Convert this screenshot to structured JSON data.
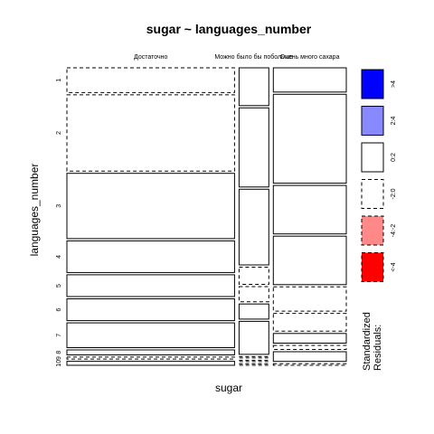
{
  "chart_data": {
    "type": "mosaic",
    "title": "sugar ~ languages_number",
    "xlabel": "sugar",
    "ylabel": "languages_number",
    "columns": [
      {
        "label": "Достаточно",
        "share": 0.62
      },
      {
        "label": "Можно было бы побольше",
        "share": 0.11
      },
      {
        "label": "Очень много сахара",
        "share": 0.27
      }
    ],
    "rows": [
      {
        "label": "1",
        "cells": [
          {
            "share": 0.25,
            "residual": "-2:0"
          },
          {
            "share": 0.55,
            "residual": "0:2"
          },
          {
            "share": 0.3,
            "residual": "0:2"
          }
        ]
      },
      {
        "label": "2",
        "cells": [
          {
            "share": 0.77,
            "residual": "-2:0"
          },
          {
            "share": 1.15,
            "residual": "0:2"
          },
          {
            "share": 1.1,
            "residual": "0:2"
          }
        ]
      },
      {
        "label": "3",
        "cells": [
          {
            "share": 0.66,
            "residual": "0:2"
          },
          {
            "share": 1.1,
            "residual": "0:2"
          },
          {
            "share": 0.6,
            "residual": "0:2"
          }
        ]
      },
      {
        "label": "4",
        "cells": [
          {
            "share": 0.32,
            "residual": "0:2"
          },
          {
            "share": 0.25,
            "residual": "-2:0"
          },
          {
            "share": 0.6,
            "residual": "0:2"
          }
        ]
      },
      {
        "label": "5",
        "cells": [
          {
            "share": 0.22,
            "residual": "0:2"
          },
          {
            "share": 0.22,
            "residual": "-2:0"
          },
          {
            "share": 0.3,
            "residual": "-2:0"
          }
        ]
      },
      {
        "label": "6",
        "cells": [
          {
            "share": 0.22,
            "residual": "0:2"
          },
          {
            "share": 0.22,
            "residual": "0:2"
          },
          {
            "share": 0.22,
            "residual": "-2:0"
          }
        ]
      },
      {
        "label": "7",
        "cells": [
          {
            "share": 0.25,
            "residual": "0:2"
          },
          {
            "share": 0.48,
            "residual": "0:2"
          },
          {
            "share": 0.12,
            "residual": "0:2"
          }
        ]
      },
      {
        "label": "8",
        "cells": [
          {
            "share": 0.05,
            "residual": "0:2"
          },
          {
            "share": 0.02,
            "residual": "-2:0"
          },
          {
            "share": 0.05,
            "residual": "-2:0"
          }
        ]
      },
      {
        "label": "9",
        "cells": [
          {
            "share": 0.02,
            "residual": "-2:0"
          },
          {
            "share": 0.02,
            "residual": "-2:0"
          },
          {
            "share": 0.12,
            "residual": "0:2"
          }
        ]
      },
      {
        "label": "10",
        "cells": [
          {
            "share": 0.04,
            "residual": "0:2"
          },
          {
            "share": 0.02,
            "residual": "-2:0"
          },
          {
            "share": 0.02,
            "residual": "-2:0"
          }
        ]
      }
    ],
    "legend": {
      "title_line1": "Standardized",
      "title_line2": "Residuals:",
      "placement": "right",
      "entries": [
        {
          "label": ">4",
          "fill": "#0000ff",
          "dashed": false
        },
        {
          "label": "2:4",
          "fill": "#8888ff",
          "dashed": false
        },
        {
          "label": "0:2",
          "fill": "#ffffff",
          "dashed": false
        },
        {
          "label": "-2:0",
          "fill": "#ffffff",
          "dashed": true
        },
        {
          "label": "-4:-2",
          "fill": "#ff8888",
          "dashed": true
        },
        {
          "label": "<-4",
          "fill": "#ff0000",
          "dashed": true
        }
      ]
    }
  }
}
